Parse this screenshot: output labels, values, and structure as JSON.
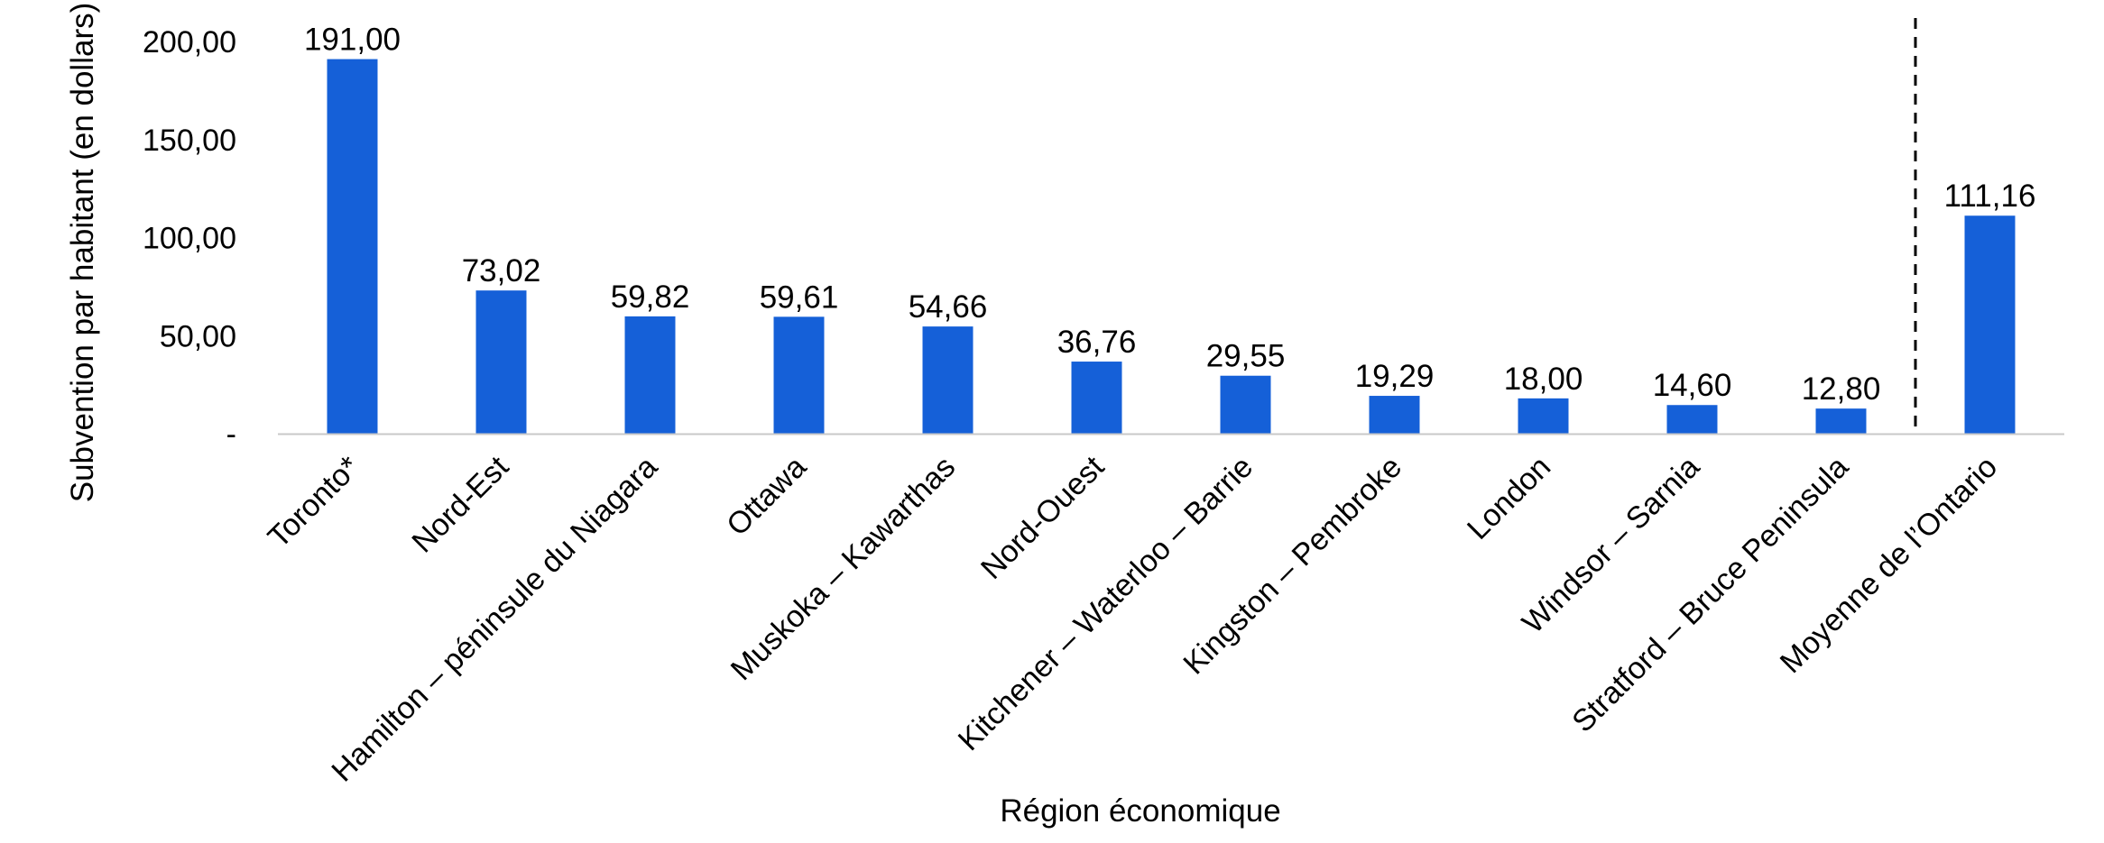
{
  "chart_data": {
    "type": "bar",
    "xlabel": "Région économique",
    "ylabel": "Subvention par habitant (en dollars)",
    "ylim": [
      0,
      200
    ],
    "yticks": [
      {
        "value": 0,
        "label": "-"
      },
      {
        "value": 50,
        "label": "50,00"
      },
      {
        "value": 100,
        "label": "100,00"
      },
      {
        "value": 150,
        "label": "150,00"
      },
      {
        "value": 200,
        "label": "200,00"
      }
    ],
    "categories": [
      "Toronto*",
      "Nord-Est",
      "Hamilton – péninsule du Niagara",
      "Ottawa",
      "Muskoka – Kawarthas",
      "Nord-Ouest",
      "Kitchener – Waterloo – Barrie",
      "Kingston – Pembroke",
      "London",
      "Windsor – Sarnia",
      "Stratford – Bruce Peninsula",
      "Moyenne de l’Ontario"
    ],
    "values": [
      191.0,
      73.02,
      59.82,
      59.61,
      54.66,
      36.76,
      29.55,
      19.29,
      18.0,
      14.6,
      12.8,
      111.16
    ],
    "data_labels": [
      "191,00",
      "73,02",
      "59,82",
      "59,61",
      "54,66",
      "36,76",
      "29,55",
      "19,29",
      "18,00",
      "14,60",
      "12,80",
      "111,16"
    ],
    "separator": "dashed line before the last category",
    "grid": false,
    "bar_color": "#1560d8",
    "axis_color": "#c8c8c8"
  }
}
